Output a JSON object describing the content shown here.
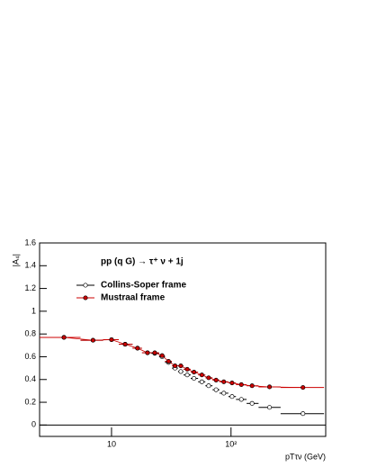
{
  "chart_data": {
    "type": "errorbar",
    "title": "pp (q G) → τ⁺ ν + 1j",
    "x_label": "pTτν (GeV)",
    "y_label": "|A₄|",
    "xscale": "log",
    "xlim": [
      2.5,
      620
    ],
    "ylim": [
      -0.1,
      1.6
    ],
    "xticks": [
      10,
      {
        "value": 100,
        "label": "10²"
      }
    ],
    "yticks": [
      0,
      0.2,
      0.4,
      0.6,
      0.8,
      1,
      1.2,
      1.4,
      1.6
    ],
    "legend": "upper left",
    "zero_line": true,
    "x": [
      4,
      7,
      10,
      13,
      16.5,
      20,
      23,
      26.5,
      30,
      34,
      38,
      43,
      49,
      57,
      65,
      75,
      87,
      102,
      122,
      150,
      210,
      400
    ],
    "bin_edges": [
      2.5,
      5.5,
      8.5,
      11.5,
      15,
      18,
      21.5,
      25,
      28,
      32,
      36,
      40,
      46,
      53,
      61,
      70,
      80,
      95,
      110,
      135,
      170,
      260,
      600
    ],
    "series": [
      {
        "name": "Collins-Soper frame",
        "color": "#000000",
        "marker": "open",
        "connect": false,
        "values": [
          0.77,
          0.745,
          0.75,
          0.71,
          0.675,
          0.635,
          0.63,
          0.6,
          0.55,
          0.5,
          0.47,
          0.44,
          0.41,
          0.38,
          0.345,
          0.31,
          0.28,
          0.25,
          0.225,
          0.19,
          0.155,
          0.1
        ]
      },
      {
        "name": "Mustraal frame",
        "color": "#cc0000",
        "marker": "filled",
        "connect": true,
        "values": [
          0.77,
          0.745,
          0.75,
          0.71,
          0.675,
          0.635,
          0.635,
          0.61,
          0.56,
          0.52,
          0.52,
          0.49,
          0.465,
          0.44,
          0.415,
          0.395,
          0.38,
          0.37,
          0.355,
          0.345,
          0.335,
          0.33
        ]
      }
    ]
  }
}
